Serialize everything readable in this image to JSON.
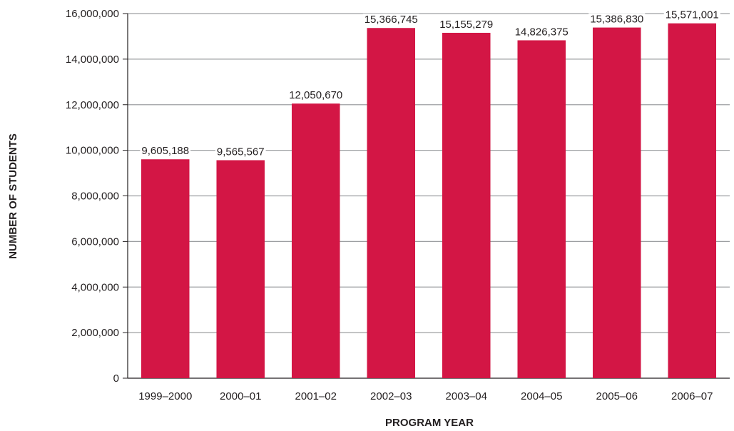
{
  "chart_data": {
    "type": "bar",
    "title": "",
    "xlabel": "PROGRAM YEAR",
    "ylabel": "NUMBER OF STUDENTS",
    "categories": [
      "1999–2000",
      "2000–01",
      "2001–02",
      "2002–03",
      "2003–04",
      "2004–05",
      "2005–06",
      "2006–07"
    ],
    "values": [
      9605188,
      9565567,
      12050670,
      15366745,
      15155279,
      14826375,
      15386830,
      15571001
    ],
    "value_labels": [
      "9,605,188",
      "9,565,567",
      "12,050,670",
      "15,366,745",
      "15,155,279",
      "14,826,375",
      "15,386,830",
      "15,571,001"
    ],
    "ylim": [
      0,
      16000000
    ],
    "yticks": [
      0,
      2000000,
      4000000,
      6000000,
      8000000,
      10000000,
      12000000,
      14000000,
      16000000
    ],
    "ytick_labels": [
      "0",
      "2,000,000",
      "4,000,000",
      "6,000,000",
      "8,000,000",
      "10,000,000",
      "12,000,000",
      "14,000,000",
      "16,000,000"
    ],
    "grid": true,
    "legend": "none",
    "colors": {
      "bar": "#d31645",
      "grid": "#9d9fa2",
      "text": "#231f20"
    }
  }
}
